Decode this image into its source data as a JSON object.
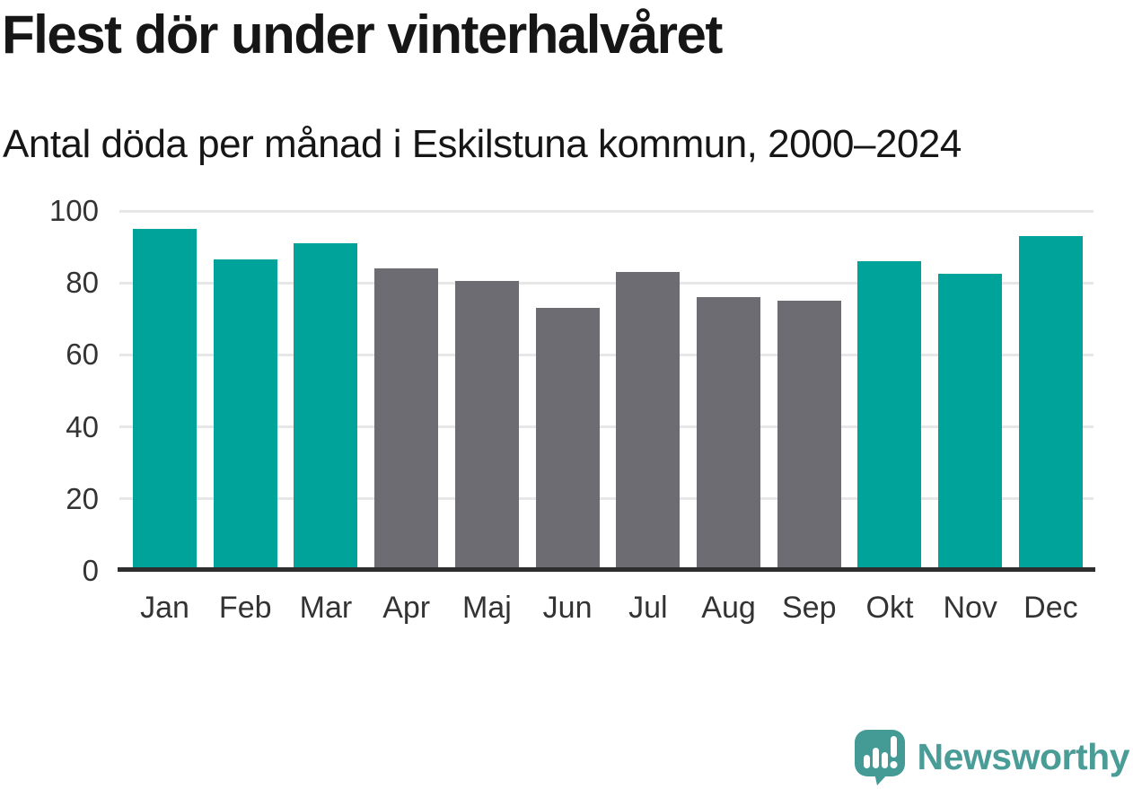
{
  "title": "Flest dör under vinterhalvåret",
  "subtitle": "Antal döda per månad i Eskilstuna kommun, 2000–2024",
  "branding": {
    "logo_text": "Newsworthy",
    "logo_text_color": "#4a9c97",
    "logo_bubble_color": "#449a94"
  },
  "colors": {
    "highlight_bar": "#00a39a",
    "base_bar": "#6e6c73",
    "gridline": "#e7e7e7",
    "axis": "#2e2e2e",
    "tick_text": "#333333",
    "title_text": "#161616"
  },
  "chart_data": {
    "type": "bar",
    "title": "Flest dör under vinterhalvåret",
    "subtitle": "Antal döda per månad i Eskilstuna kommun, 2000–2024",
    "categories": [
      "Jan",
      "Feb",
      "Mar",
      "Apr",
      "Maj",
      "Jun",
      "Jul",
      "Aug",
      "Sep",
      "Okt",
      "Nov",
      "Dec"
    ],
    "values": [
      94.5,
      86,
      90.5,
      83.5,
      80,
      72.5,
      82.5,
      75.5,
      74.5,
      85.5,
      82,
      92.5
    ],
    "bar_colors": [
      "#00a39a",
      "#00a39a",
      "#00a39a",
      "#6e6c73",
      "#6e6c73",
      "#6e6c73",
      "#6e6c73",
      "#6e6c73",
      "#6e6c73",
      "#00a39a",
      "#00a39a",
      "#00a39a"
    ],
    "xlabel": "",
    "ylabel": "",
    "ylim": [
      0,
      100
    ],
    "yticks": [
      0,
      20,
      40,
      60,
      80,
      100
    ],
    "grid": true,
    "legend": false
  }
}
